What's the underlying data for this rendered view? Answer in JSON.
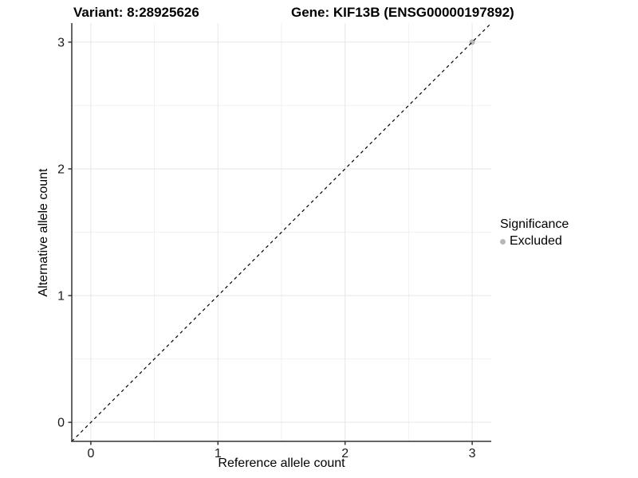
{
  "titles": {
    "variant": "Variant: 8:28925626",
    "gene": "Gene: KIF13B (ENSG00000197892)"
  },
  "axes": {
    "x_label": "Reference allele count",
    "y_label": "Alternative allele count"
  },
  "legend": {
    "title": "Significance",
    "items": [
      {
        "label": "Excluded",
        "color": "#b8b8b8"
      }
    ]
  },
  "chart_data": {
    "type": "scatter",
    "title": "Variant: 8:28925626 — Gene: KIF13B (ENSG00000197892)",
    "xlabel": "Reference allele count",
    "ylabel": "Alternative allele count",
    "xlim": [
      -0.15,
      3.15
    ],
    "ylim": [
      -0.15,
      3.15
    ],
    "x_ticks": [
      0,
      1,
      2,
      3
    ],
    "y_ticks": [
      0,
      1,
      2,
      3
    ],
    "x_minor_gridlines": [
      0.5,
      1.5,
      2.5
    ],
    "y_minor_gridlines": [
      0.5,
      1.5,
      2.5
    ],
    "grid": "on",
    "legend_position": "right",
    "series": [
      {
        "name": "Excluded",
        "color": "#b8b8b8",
        "points": [
          {
            "x": 3,
            "y": 3
          }
        ]
      }
    ],
    "identity_line": {
      "style": "dashed",
      "color": "#000000",
      "x1": -0.15,
      "y1": -0.15,
      "x2": 3.15,
      "y2": 3.15
    },
    "colors": {
      "major_grid": "#e6e6e6",
      "minor_grid": "#f1f1f1",
      "axis_line": "#333333",
      "tick_mark": "#333333",
      "point": "#b8b8b8",
      "background": "#ffffff"
    }
  }
}
